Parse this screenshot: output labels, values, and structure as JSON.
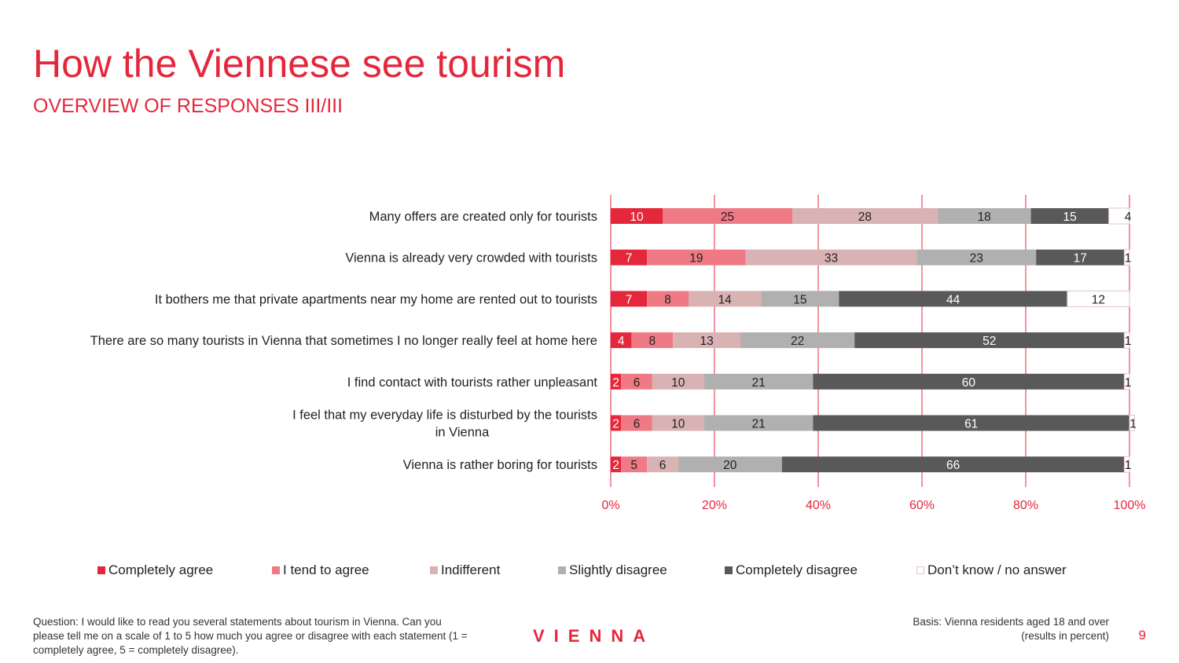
{
  "header": {
    "title": "How the Viennese see tourism",
    "subtitle": "OVERVIEW OF RESPONSES III/III"
  },
  "colors": {
    "accent": "#e5273c",
    "completely_agree": "#e5273c",
    "tend_to_agree": "#ef7a85",
    "indifferent": "#d9b2b4",
    "slightly_disagree": "#b0b0b0",
    "completely_disagree": "#595959",
    "dont_know": "#ffffff"
  },
  "chart_data": {
    "type": "bar",
    "orientation": "horizontal",
    "stacked": true,
    "categories": [
      "Many offers are created only for tourists",
      "Vienna is already very crowded with tourists",
      "It bothers me that private apartments near my home are rented out to tourists",
      "There are so many tourists in Vienna that sometimes I no longer really feel at home here",
      "I find contact with tourists rather unpleasant",
      "I feel that my everyday life is disturbed by the tourists in Vienna",
      "Vienna is rather boring for tourists"
    ],
    "series": [
      {
        "name": "Completely agree",
        "color": "#e5273c",
        "values": [
          10,
          7,
          7,
          4,
          2,
          2,
          2
        ]
      },
      {
        "name": "I tend to agree",
        "color": "#ef7a85",
        "values": [
          25,
          19,
          8,
          8,
          6,
          6,
          5
        ]
      },
      {
        "name": "Indifferent",
        "color": "#d9b2b4",
        "values": [
          28,
          33,
          14,
          13,
          10,
          10,
          6
        ]
      },
      {
        "name": "Slightly disagree",
        "color": "#b0b0b0",
        "values": [
          18,
          23,
          15,
          22,
          21,
          21,
          20
        ]
      },
      {
        "name": "Completely disagree",
        "color": "#595959",
        "values": [
          15,
          17,
          44,
          52,
          60,
          61,
          66
        ]
      },
      {
        "name": "Don’t know / no answer",
        "color": "#ffffff",
        "values": [
          4,
          1,
          12,
          1,
          1,
          1,
          1
        ]
      }
    ],
    "xticks": [
      "0%",
      "20%",
      "40%",
      "60%",
      "80%",
      "100%"
    ],
    "xlim": [
      0,
      100
    ],
    "grid": true,
    "legend": "bottom"
  },
  "footer": {
    "question": "Question: I would like to read you several statements about tourism in Vienna. Can you please tell me on a scale of 1 to 5 how much you agree or disagree with each statement (1 = completely agree, 5 = completely disagree).",
    "basis_line1": "Basis: Vienna residents aged 18 and over",
    "basis_line2": "(results in percent)",
    "logo": "VIENNA",
    "page_number": "9"
  }
}
